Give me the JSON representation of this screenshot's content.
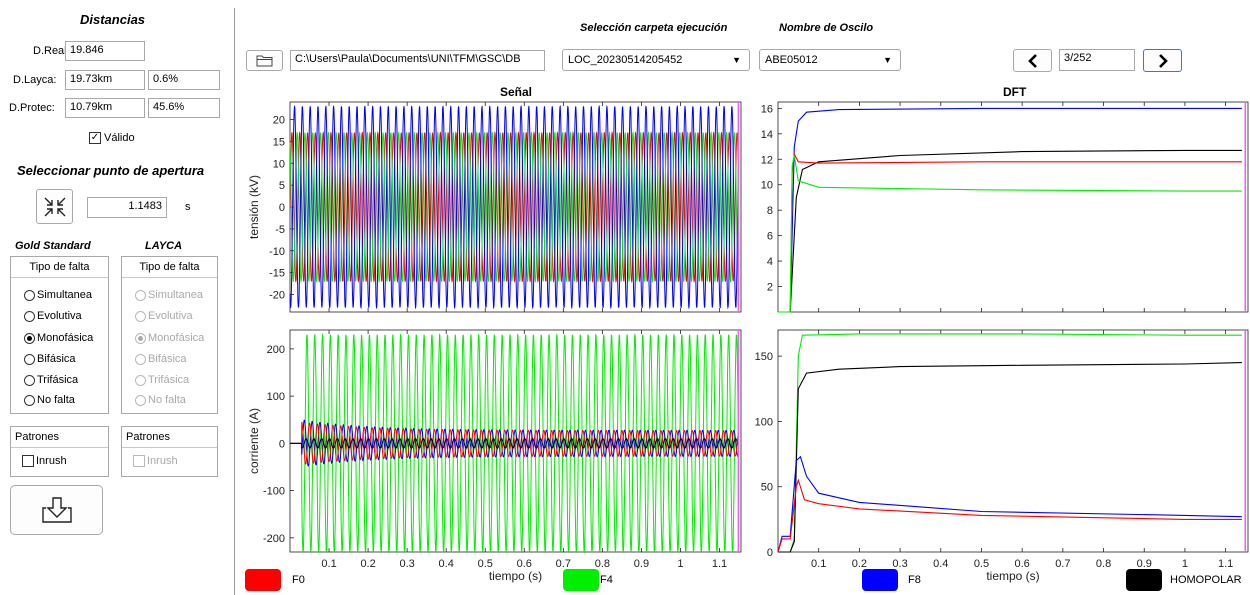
{
  "distancias": {
    "title": "Distancias",
    "dreal_label": "D.Real:",
    "dreal_value": "19.846",
    "dlayca_label": "D.Layca:",
    "dlayca_value": "19.73km",
    "dlayca_pct": "0.6%",
    "dprotec_label": "D.Protec:",
    "dprotec_value": "10.79km",
    "dprotec_pct": "45.6%",
    "valido_label": "Válido",
    "valido_checked": true
  },
  "apertura": {
    "title": "Seleccionar punto de apertura",
    "value": "1.1483",
    "unit": "s"
  },
  "gold_standard": {
    "title": "Gold Standard",
    "panel_title": "Tipo de falta",
    "options": [
      "Simultanea",
      "Evolutiva",
      "Monofásica",
      "Bifásica",
      "Trifásica",
      "No falta"
    ],
    "selected": "Monofásica",
    "patrones_title": "Patrones",
    "inrush_label": "Inrush"
  },
  "layca": {
    "title": "LAYCA",
    "panel_title": "Tipo de falta",
    "options": [
      "Simultanea",
      "Evolutiva",
      "Monofásica",
      "Bifásica",
      "Trifásica",
      "No falta"
    ],
    "selected": "Monofásica",
    "patrones_title": "Patrones",
    "inrush_label": "Inrush"
  },
  "toolbar": {
    "path_value": "C:\\Users\\Paula\\Documents\\UNI\\TFM\\GSC\\DB",
    "carpeta_label": "Selección carpeta ejecución",
    "carpeta_value": "LOC_20230514205452",
    "oscilo_label": "Nombre de Oscilo",
    "oscilo_value": "ABE05012",
    "page_value": "3/252"
  },
  "colors": {
    "F0": "#ff0000",
    "F4": "#00ee00",
    "F8": "#0000ff",
    "HOMOPOLAR": "#000000",
    "cursor": "#ee66ee"
  },
  "legend": [
    {
      "label": "F0",
      "color": "#ff0000"
    },
    {
      "label": "F4",
      "color": "#00ee00"
    },
    {
      "label": "F8",
      "color": "#0000ff"
    },
    {
      "label": "HOMOPOLAR",
      "color": "#000000"
    }
  ],
  "charts": {
    "senal_title": "Señal",
    "dft_title": "DFT",
    "x_label": "tiempo (s)",
    "y_tension_label": "tensión (kV)",
    "y_corriente_label": "corriente (A)"
  },
  "chart_data": [
    {
      "type": "line",
      "title": "Señal",
      "ylabel": "tensión (kV)",
      "xlabel": "",
      "xlim": [
        0,
        1.155
      ],
      "ylim": [
        -24,
        24
      ],
      "yticks": [
        -20,
        -15,
        -10,
        -5,
        0,
        5,
        10,
        15,
        20
      ],
      "series": [
        {
          "color": "#ff0000",
          "amplitude": 17
        },
        {
          "color": "#00ee00",
          "amplitude": 17
        },
        {
          "color": "#0000ff",
          "amplitude": 23
        }
      ],
      "frequency_hz": 50,
      "cursor_x": 1.1483
    },
    {
      "type": "line",
      "title": "DFT",
      "xlabel": "",
      "xlim": [
        0,
        1.155
      ],
      "ylim": [
        0,
        16.5
      ],
      "yticks": [
        2,
        4,
        6,
        8,
        10,
        12,
        14,
        16
      ],
      "series": [
        {
          "color": "#0000ff",
          "x": [
            0.0,
            0.03,
            0.04,
            0.05,
            0.07,
            0.15,
            0.5,
            1.0,
            1.14
          ],
          "y": [
            0,
            0,
            13,
            15,
            15.7,
            15.9,
            16.0,
            16.0,
            16.0
          ]
        },
        {
          "color": "#000000",
          "x": [
            0.0,
            0.03,
            0.045,
            0.06,
            0.1,
            0.3,
            0.6,
            1.0,
            1.14
          ],
          "y": [
            0,
            0,
            9,
            11.2,
            11.8,
            12.3,
            12.6,
            12.7,
            12.7
          ]
        },
        {
          "color": "#ff0000",
          "x": [
            0.0,
            0.03,
            0.035,
            0.04,
            0.05,
            0.1,
            0.5,
            1.0,
            1.14
          ],
          "y": [
            0,
            0,
            11,
            12.4,
            11.8,
            11.7,
            11.8,
            11.8,
            11.8
          ]
        },
        {
          "color": "#00ee00",
          "x": [
            0.0,
            0.03,
            0.035,
            0.04,
            0.05,
            0.1,
            0.5,
            1.0,
            1.14
          ],
          "y": [
            0,
            0,
            11.5,
            12.3,
            10.3,
            9.8,
            9.6,
            9.5,
            9.5
          ]
        }
      ],
      "cursor_x": 1.1483
    },
    {
      "type": "line",
      "title": "",
      "ylabel": "corriente (A)",
      "xlabel": "tiempo (s)",
      "xlim": [
        0,
        1.155
      ],
      "ylim": [
        -230,
        240
      ],
      "yticks": [
        -200,
        -100,
        0,
        100,
        200
      ],
      "xticks": [
        0.1,
        0.2,
        0.3,
        0.4,
        0.5,
        0.6,
        0.7,
        0.8,
        0.9,
        1,
        1.1
      ],
      "series": [
        {
          "color": "#00ee00",
          "amplitude": 230
        },
        {
          "color": "#0000ff",
          "amplitude": 50
        },
        {
          "color": "#ff0000",
          "amplitude": 45
        },
        {
          "color": "#000000",
          "amplitude": 10
        }
      ],
      "frequency_hz": 50,
      "fault_start": 0.03,
      "cursor_x": 1.1483
    },
    {
      "type": "line",
      "title": "",
      "xlabel": "tiempo (s)",
      "xlim": [
        0,
        1.155
      ],
      "ylim": [
        0,
        170
      ],
      "yticks": [
        0,
        50,
        100,
        150
      ],
      "xticks": [
        0.1,
        0.2,
        0.3,
        0.4,
        0.5,
        0.6,
        0.7,
        0.8,
        0.9,
        1,
        1.1
      ],
      "series": [
        {
          "color": "#00ee00",
          "x": [
            0.0,
            0.03,
            0.04,
            0.05,
            0.06,
            0.2,
            0.6,
            1.0,
            1.14
          ],
          "y": [
            0,
            0,
            10,
            150,
            166,
            167,
            167,
            166,
            166
          ]
        },
        {
          "color": "#000000",
          "x": [
            0.0,
            0.03,
            0.04,
            0.05,
            0.07,
            0.15,
            0.3,
            0.6,
            1.0,
            1.14
          ],
          "y": [
            0,
            0,
            8,
            125,
            137,
            140,
            142,
            143,
            144,
            145
          ]
        },
        {
          "color": "#0000ff",
          "x": [
            0.0,
            0.01,
            0.03,
            0.045,
            0.055,
            0.07,
            0.1,
            0.2,
            0.5,
            1.0,
            1.14
          ],
          "y": [
            0,
            12,
            12,
            70,
            73,
            58,
            45,
            38,
            31,
            28,
            27
          ]
        },
        {
          "color": "#ff0000",
          "x": [
            0.0,
            0.01,
            0.03,
            0.045,
            0.05,
            0.065,
            0.1,
            0.2,
            0.5,
            1.0,
            1.14
          ],
          "y": [
            0,
            10,
            10,
            50,
            55,
            40,
            37,
            33,
            28,
            25,
            25
          ]
        }
      ],
      "cursor_x": 1.1483
    }
  ]
}
